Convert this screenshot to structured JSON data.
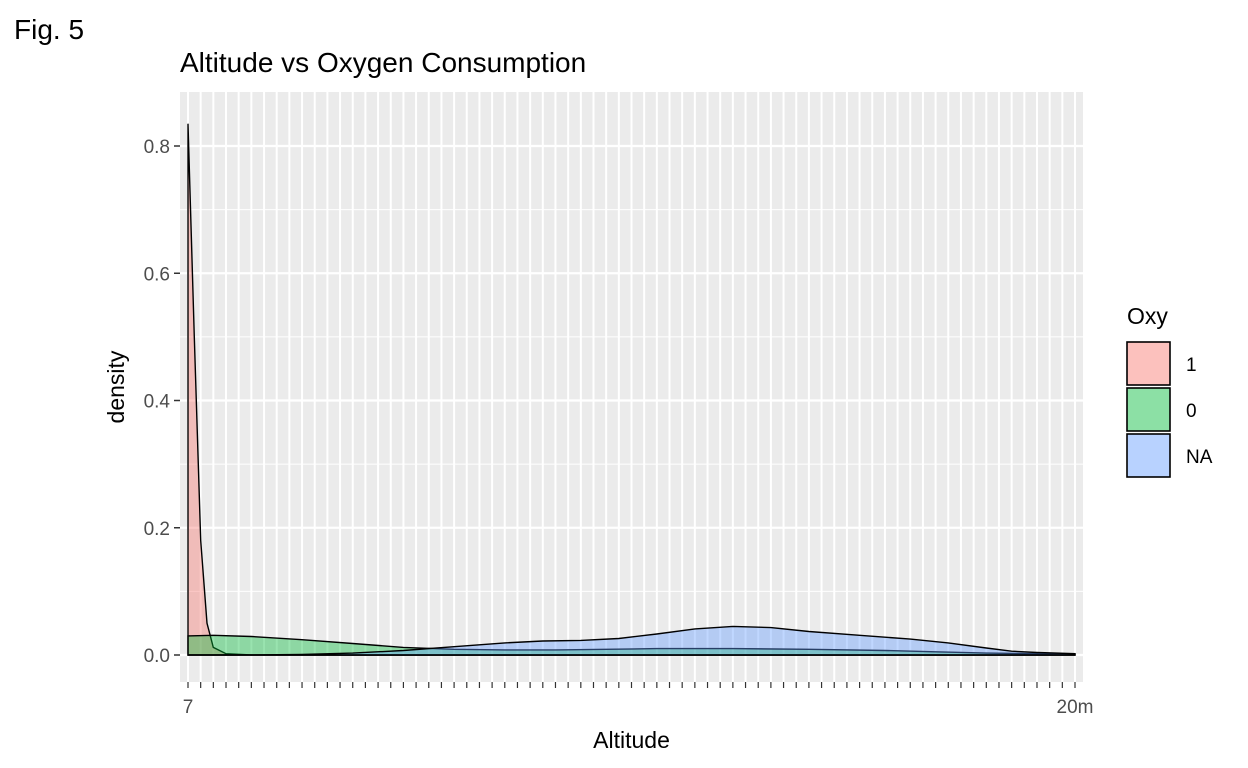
{
  "figure_label": "Fig. 5",
  "chart_data": {
    "type": "area",
    "title": "Altitude vs Oxygen Consumption",
    "xlabel": "Altitude",
    "ylabel": "density",
    "x_axis": "categorical (many overlapping altitude labels)",
    "x_tick_count": 71,
    "x_tick_label_first": "7",
    "x_tick_label_last": "20m",
    "ylim": [
      0,
      0.87
    ],
    "y_ticks": [
      0.0,
      0.2,
      0.4,
      0.6,
      0.8
    ],
    "y_tick_labels": [
      "0.0",
      "0.2",
      "0.4",
      "0.6",
      "0.8"
    ],
    "grid": true,
    "legend": {
      "title": "Oxy",
      "position": "right"
    },
    "series": [
      {
        "name": "1",
        "color": "#F8766D",
        "points": [
          [
            1,
            0.835
          ],
          [
            1.5,
            0.5
          ],
          [
            2,
            0.18
          ],
          [
            2.5,
            0.05
          ],
          [
            3,
            0.012
          ],
          [
            4,
            0.002
          ],
          [
            6,
            0.0
          ],
          [
            71,
            0.0
          ]
        ]
      },
      {
        "name": "0",
        "color": "#00BA38",
        "points": [
          [
            1,
            0.03
          ],
          [
            3,
            0.031
          ],
          [
            6,
            0.029
          ],
          [
            10,
            0.024
          ],
          [
            14,
            0.018
          ],
          [
            18,
            0.012
          ],
          [
            22,
            0.009
          ],
          [
            26,
            0.008
          ],
          [
            30,
            0.008
          ],
          [
            34,
            0.009
          ],
          [
            38,
            0.01
          ],
          [
            44,
            0.01
          ],
          [
            50,
            0.009
          ],
          [
            56,
            0.007
          ],
          [
            60,
            0.005
          ],
          [
            64,
            0.003
          ],
          [
            68,
            0.002
          ],
          [
            71,
            0.001
          ]
        ]
      },
      {
        "name": "NA",
        "color": "#619CFF",
        "points": [
          [
            1,
            0.0
          ],
          [
            6,
            0.0
          ],
          [
            10,
            0.001
          ],
          [
            14,
            0.003
          ],
          [
            18,
            0.007
          ],
          [
            22,
            0.013
          ],
          [
            26,
            0.019
          ],
          [
            29,
            0.022
          ],
          [
            32,
            0.023
          ],
          [
            35,
            0.026
          ],
          [
            38,
            0.033
          ],
          [
            41,
            0.041
          ],
          [
            44,
            0.045
          ],
          [
            47,
            0.043
          ],
          [
            50,
            0.037
          ],
          [
            54,
            0.031
          ],
          [
            58,
            0.025
          ],
          [
            61,
            0.019
          ],
          [
            64,
            0.011
          ],
          [
            66,
            0.006
          ],
          [
            68,
            0.004
          ],
          [
            71,
            0.002
          ]
        ]
      }
    ]
  }
}
